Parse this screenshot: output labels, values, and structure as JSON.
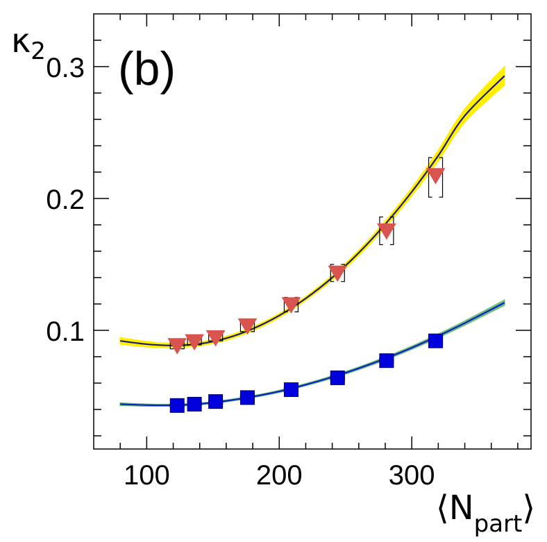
{
  "chart_data": {
    "type": "scatter",
    "panel_label": "(b)",
    "xlabel": {
      "main": "⟨N",
      "sub": "part",
      "close": "⟩"
    },
    "ylabel": {
      "main": "κ",
      "sub": "2"
    },
    "xlim": [
      60,
      390
    ],
    "ylim": [
      0.01,
      0.34
    ],
    "x_ticks": [
      {
        "value": 100,
        "label": "100"
      },
      {
        "value": 200,
        "label": "200"
      },
      {
        "value": 300,
        "label": "300"
      }
    ],
    "y_ticks": [
      {
        "value": 0.1,
        "label": "0.1"
      },
      {
        "value": 0.2,
        "label": "0.2"
      },
      {
        "value": 0.3,
        "label": "0.3"
      }
    ],
    "grid": false,
    "series": [
      {
        "name": "triangles",
        "marker": "triangle-down",
        "color": "#d9534f",
        "x": [
          123,
          136,
          152,
          176,
          209,
          244,
          281,
          318
        ],
        "y": [
          0.088,
          0.091,
          0.094,
          0.103,
          0.119,
          0.143,
          0.175,
          0.217
        ],
        "syst_low": [
          0.086,
          0.089,
          0.092,
          0.099,
          0.114,
          0.137,
          0.165,
          0.201
        ],
        "syst_high": [
          0.091,
          0.094,
          0.098,
          0.107,
          0.125,
          0.15,
          0.186,
          0.231
        ]
      },
      {
        "name": "squares",
        "marker": "square",
        "color": "#0000dd",
        "x": [
          123,
          136,
          152,
          176,
          209,
          244,
          281,
          318
        ],
        "y": [
          0.043,
          0.044,
          0.046,
          0.049,
          0.055,
          0.064,
          0.077,
          0.092
        ],
        "syst_low": [
          0.042,
          0.043,
          0.044,
          0.047,
          0.053,
          0.062,
          0.075,
          0.088
        ],
        "syst_high": [
          0.044,
          0.046,
          0.047,
          0.051,
          0.057,
          0.066,
          0.079,
          0.096
        ]
      }
    ],
    "fits": [
      {
        "name": "fit-upper",
        "color": "#1a1a7a",
        "band_color": "#ffee00",
        "x": [
          80,
          100,
          120,
          140,
          160,
          180,
          200,
          220,
          240,
          260,
          280,
          300,
          320,
          340,
          370
        ],
        "y": [
          0.092,
          0.0895,
          0.0885,
          0.0898,
          0.094,
          0.1012,
          0.1112,
          0.1242,
          0.14,
          0.1588,
          0.1805,
          0.205,
          0.2325,
          0.2628,
          0.293
        ],
        "band_halfwidth": [
          0.0025,
          0.002,
          0.0015,
          0.0015,
          0.0015,
          0.0015,
          0.0015,
          0.0015,
          0.0018,
          0.002,
          0.0025,
          0.003,
          0.004,
          0.005,
          0.007
        ]
      },
      {
        "name": "fit-lower",
        "color": "#0a1fbf",
        "band_color": "#6fbf7f",
        "x": [
          80,
          100,
          120,
          140,
          160,
          180,
          200,
          220,
          240,
          260,
          280,
          300,
          320,
          340,
          370
        ],
        "y": [
          0.044,
          0.0433,
          0.0432,
          0.0442,
          0.0465,
          0.0497,
          0.0537,
          0.0588,
          0.0646,
          0.0712,
          0.0786,
          0.0868,
          0.0958,
          0.1055,
          0.121
        ],
        "band_halfwidth": [
          0.001,
          0.0008,
          0.0007,
          0.0007,
          0.0007,
          0.0007,
          0.0008,
          0.0008,
          0.0009,
          0.001,
          0.0011,
          0.0012,
          0.0014,
          0.0016,
          0.002
        ]
      }
    ]
  }
}
